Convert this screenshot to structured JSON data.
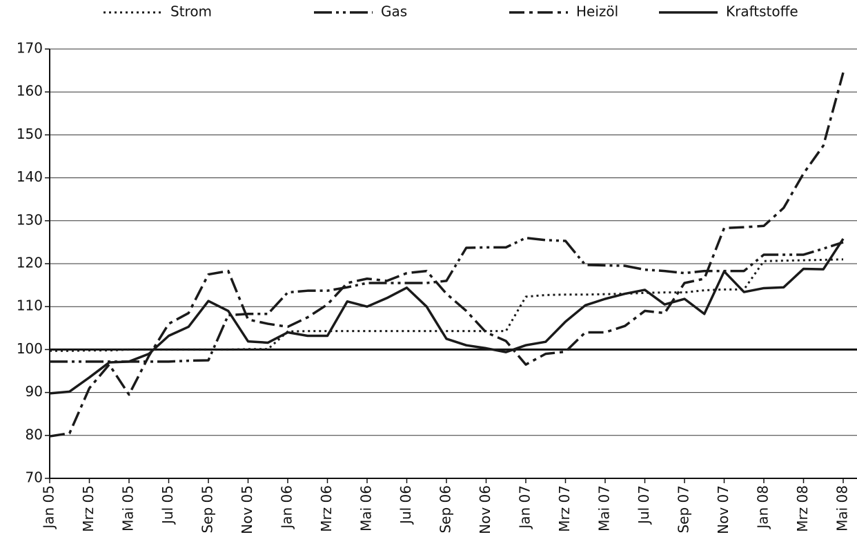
{
  "chart_data": {
    "type": "line",
    "categories": [
      "Jan 05",
      null,
      "Mrz 05",
      null,
      "Mai 05",
      null,
      "Jul 05",
      null,
      "Sep 05",
      null,
      "Nov 05",
      null,
      "Jan 06",
      null,
      "Mrz 06",
      null,
      "Mai 06",
      null,
      "Jul 06",
      null,
      "Sep 06",
      null,
      "Nov 06",
      null,
      "Jan 07",
      null,
      "Mrz 07",
      null,
      "Mai 07",
      null,
      "Jul 07",
      null,
      "Sep 07",
      null,
      "Nov 07",
      null,
      "Jan 08",
      null,
      "Mrz 08",
      null,
      "Mai 08"
    ],
    "series": [
      {
        "name": "Strom",
        "color": "#1a1a1a",
        "style": "dotted",
        "values": [
          99.7,
          99.7,
          99.8,
          99.8,
          100,
          100,
          100,
          100,
          100,
          100,
          100.1,
          100.1,
          104.2,
          104.3,
          104.3,
          104.3,
          104.3,
          104.3,
          104.3,
          104.3,
          104.3,
          104.3,
          104.3,
          104.3,
          112.3,
          112.7,
          112.8,
          112.8,
          112.9,
          113,
          113.2,
          113.3,
          113.3,
          113.8,
          114,
          114,
          120.6,
          120.7,
          120.8,
          120.9,
          121
        ]
      },
      {
        "name": "Gas",
        "color": "#1a1a1a",
        "style": "dash-dot-dot",
        "values": [
          97.2,
          97.2,
          97.2,
          97.2,
          97.2,
          97.2,
          97.2,
          97.4,
          97.5,
          108,
          108.3,
          108.3,
          113.3,
          113.7,
          113.7,
          114.5,
          115.5,
          115.5,
          115.5,
          115.5,
          116,
          123.7,
          123.8,
          123.8,
          126,
          125.5,
          125.3,
          119.7,
          119.6,
          119.5,
          118.6,
          118.3,
          117.8,
          118.3,
          118.3,
          118.3,
          122.1,
          122.1,
          122.1,
          123.5,
          125
        ]
      },
      {
        "name": "Heizöl",
        "color": "#1a1a1a",
        "style": "dash-dot",
        "values": [
          79.8,
          80.5,
          91,
          96.5,
          89.5,
          98.5,
          106,
          108.5,
          117.5,
          118.3,
          107,
          106,
          105.3,
          107.5,
          110.5,
          115.5,
          116.5,
          116,
          117.8,
          118.3,
          113,
          109,
          104,
          102,
          96.5,
          99,
          99.5,
          104,
          104,
          105.5,
          109,
          108.5,
          115.5,
          116.5,
          128.3,
          128.5,
          128.8,
          133,
          141,
          147.5,
          164.5
        ]
      },
      {
        "name": "Kraftstoffe",
        "color": "#1a1a1a",
        "style": "solid",
        "values": [
          89.8,
          90.2,
          93.5,
          97,
          97.2,
          99,
          103.2,
          105.3,
          111.3,
          109,
          101.9,
          101.6,
          104,
          103.2,
          103.2,
          111.2,
          110,
          112,
          114.4,
          110,
          102.5,
          101,
          100.3,
          99.4,
          101,
          101.8,
          106.5,
          110.3,
          111.8,
          113,
          113.9,
          110.5,
          111.8,
          108.3,
          118.2,
          113.4,
          114.3,
          114.5,
          118.8,
          118.7,
          125.8
        ]
      }
    ],
    "ylim": [
      70,
      170
    ],
    "yticks": [
      70,
      80,
      90,
      100,
      110,
      120,
      130,
      140,
      150,
      160,
      170
    ],
    "grid": true,
    "baseline": 100,
    "legend": "top"
  }
}
